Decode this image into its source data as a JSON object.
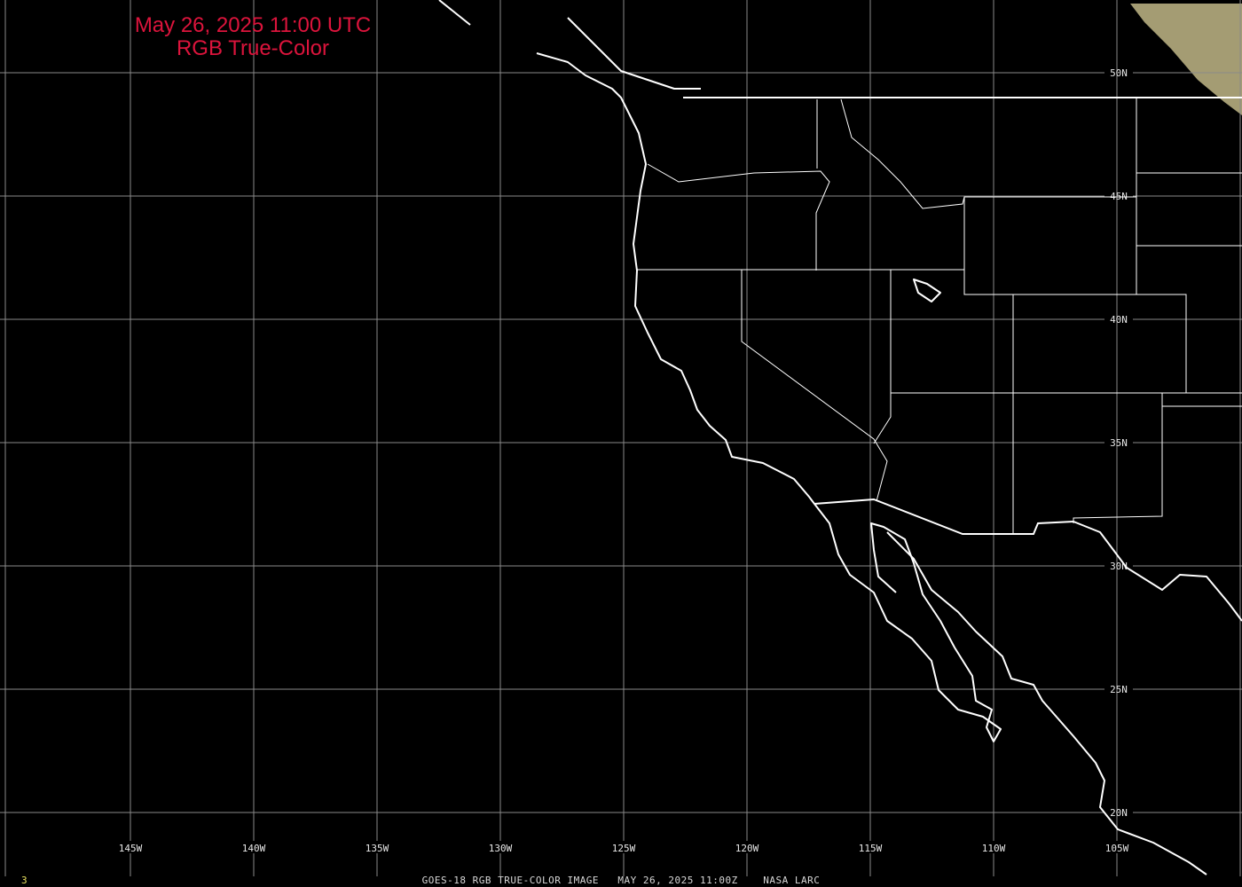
{
  "title": {
    "line1": "May 26, 2025 11:00 UTC",
    "line2": "RGB True-Color"
  },
  "caption": "GOES-18 RGB TRUE-COLOR IMAGE   MAY 26, 2025 11:00Z    NASA LARC",
  "frame_number": "3",
  "title_color": "#dc143c",
  "grid": {
    "longitude_labels": [
      "145W",
      "140W",
      "135W",
      "130W",
      "125W",
      "120W",
      "115W",
      "110W",
      "105W"
    ],
    "latitude_labels": [
      "50N",
      "45N",
      "40N",
      "35N",
      "30N",
      "25N",
      "20N"
    ]
  },
  "colors": {
    "background": "#000000",
    "coastline": "#ffffff",
    "grid": "#8a8a8a",
    "daylight_imagery": "#b8ae7e"
  }
}
